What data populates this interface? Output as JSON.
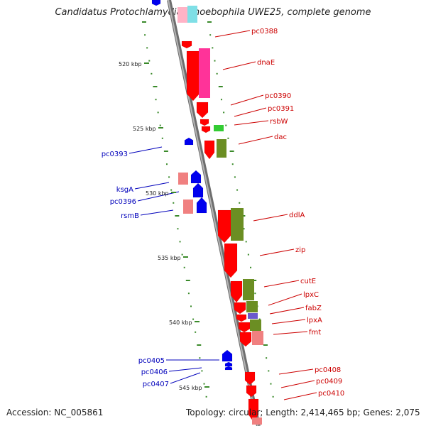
{
  "title": "Candidatus Protochlamydia amoebophila UWE25, complete genome",
  "accession_text": "Accession: NC_005861",
  "summary_text": "Topology: circular; Length: 2,414,465 bp; Genes: 2,075",
  "colors": {
    "backbone": "#8c8c8c",
    "tick": "#3a8a2a",
    "right_label": "#cc0000",
    "left_label": "#0000bb",
    "cds_forward": "#ff0000",
    "cds_reverse": "#0000ee",
    "rna": "#33cc33",
    "homolog_olive": "#6b8e23",
    "homolog_pink": "#ff3399",
    "homolog_light": "#f08080",
    "homolog_cyan": "#7fdfe6",
    "homolog_blue": "#6a5acd"
  },
  "scale_labels": [
    "520 kbp",
    "525 kbp",
    "530 kbp",
    "535 kbp",
    "540 kbp",
    "545 kbp"
  ],
  "right_genes": [
    "pc0388",
    "dnaE",
    "pc0390",
    "pc0391",
    "rsbW",
    "dac",
    "ddlA",
    "zip",
    "cutE",
    "lpxC",
    "fabZ",
    "lpxA",
    "fmt",
    "pc0408",
    "pc0409",
    "pc0410"
  ],
  "left_genes": [
    "pc0393",
    "ksgA",
    "pc0396",
    "rsmB",
    "pc0405",
    "pc0406",
    "pc0407"
  ]
}
